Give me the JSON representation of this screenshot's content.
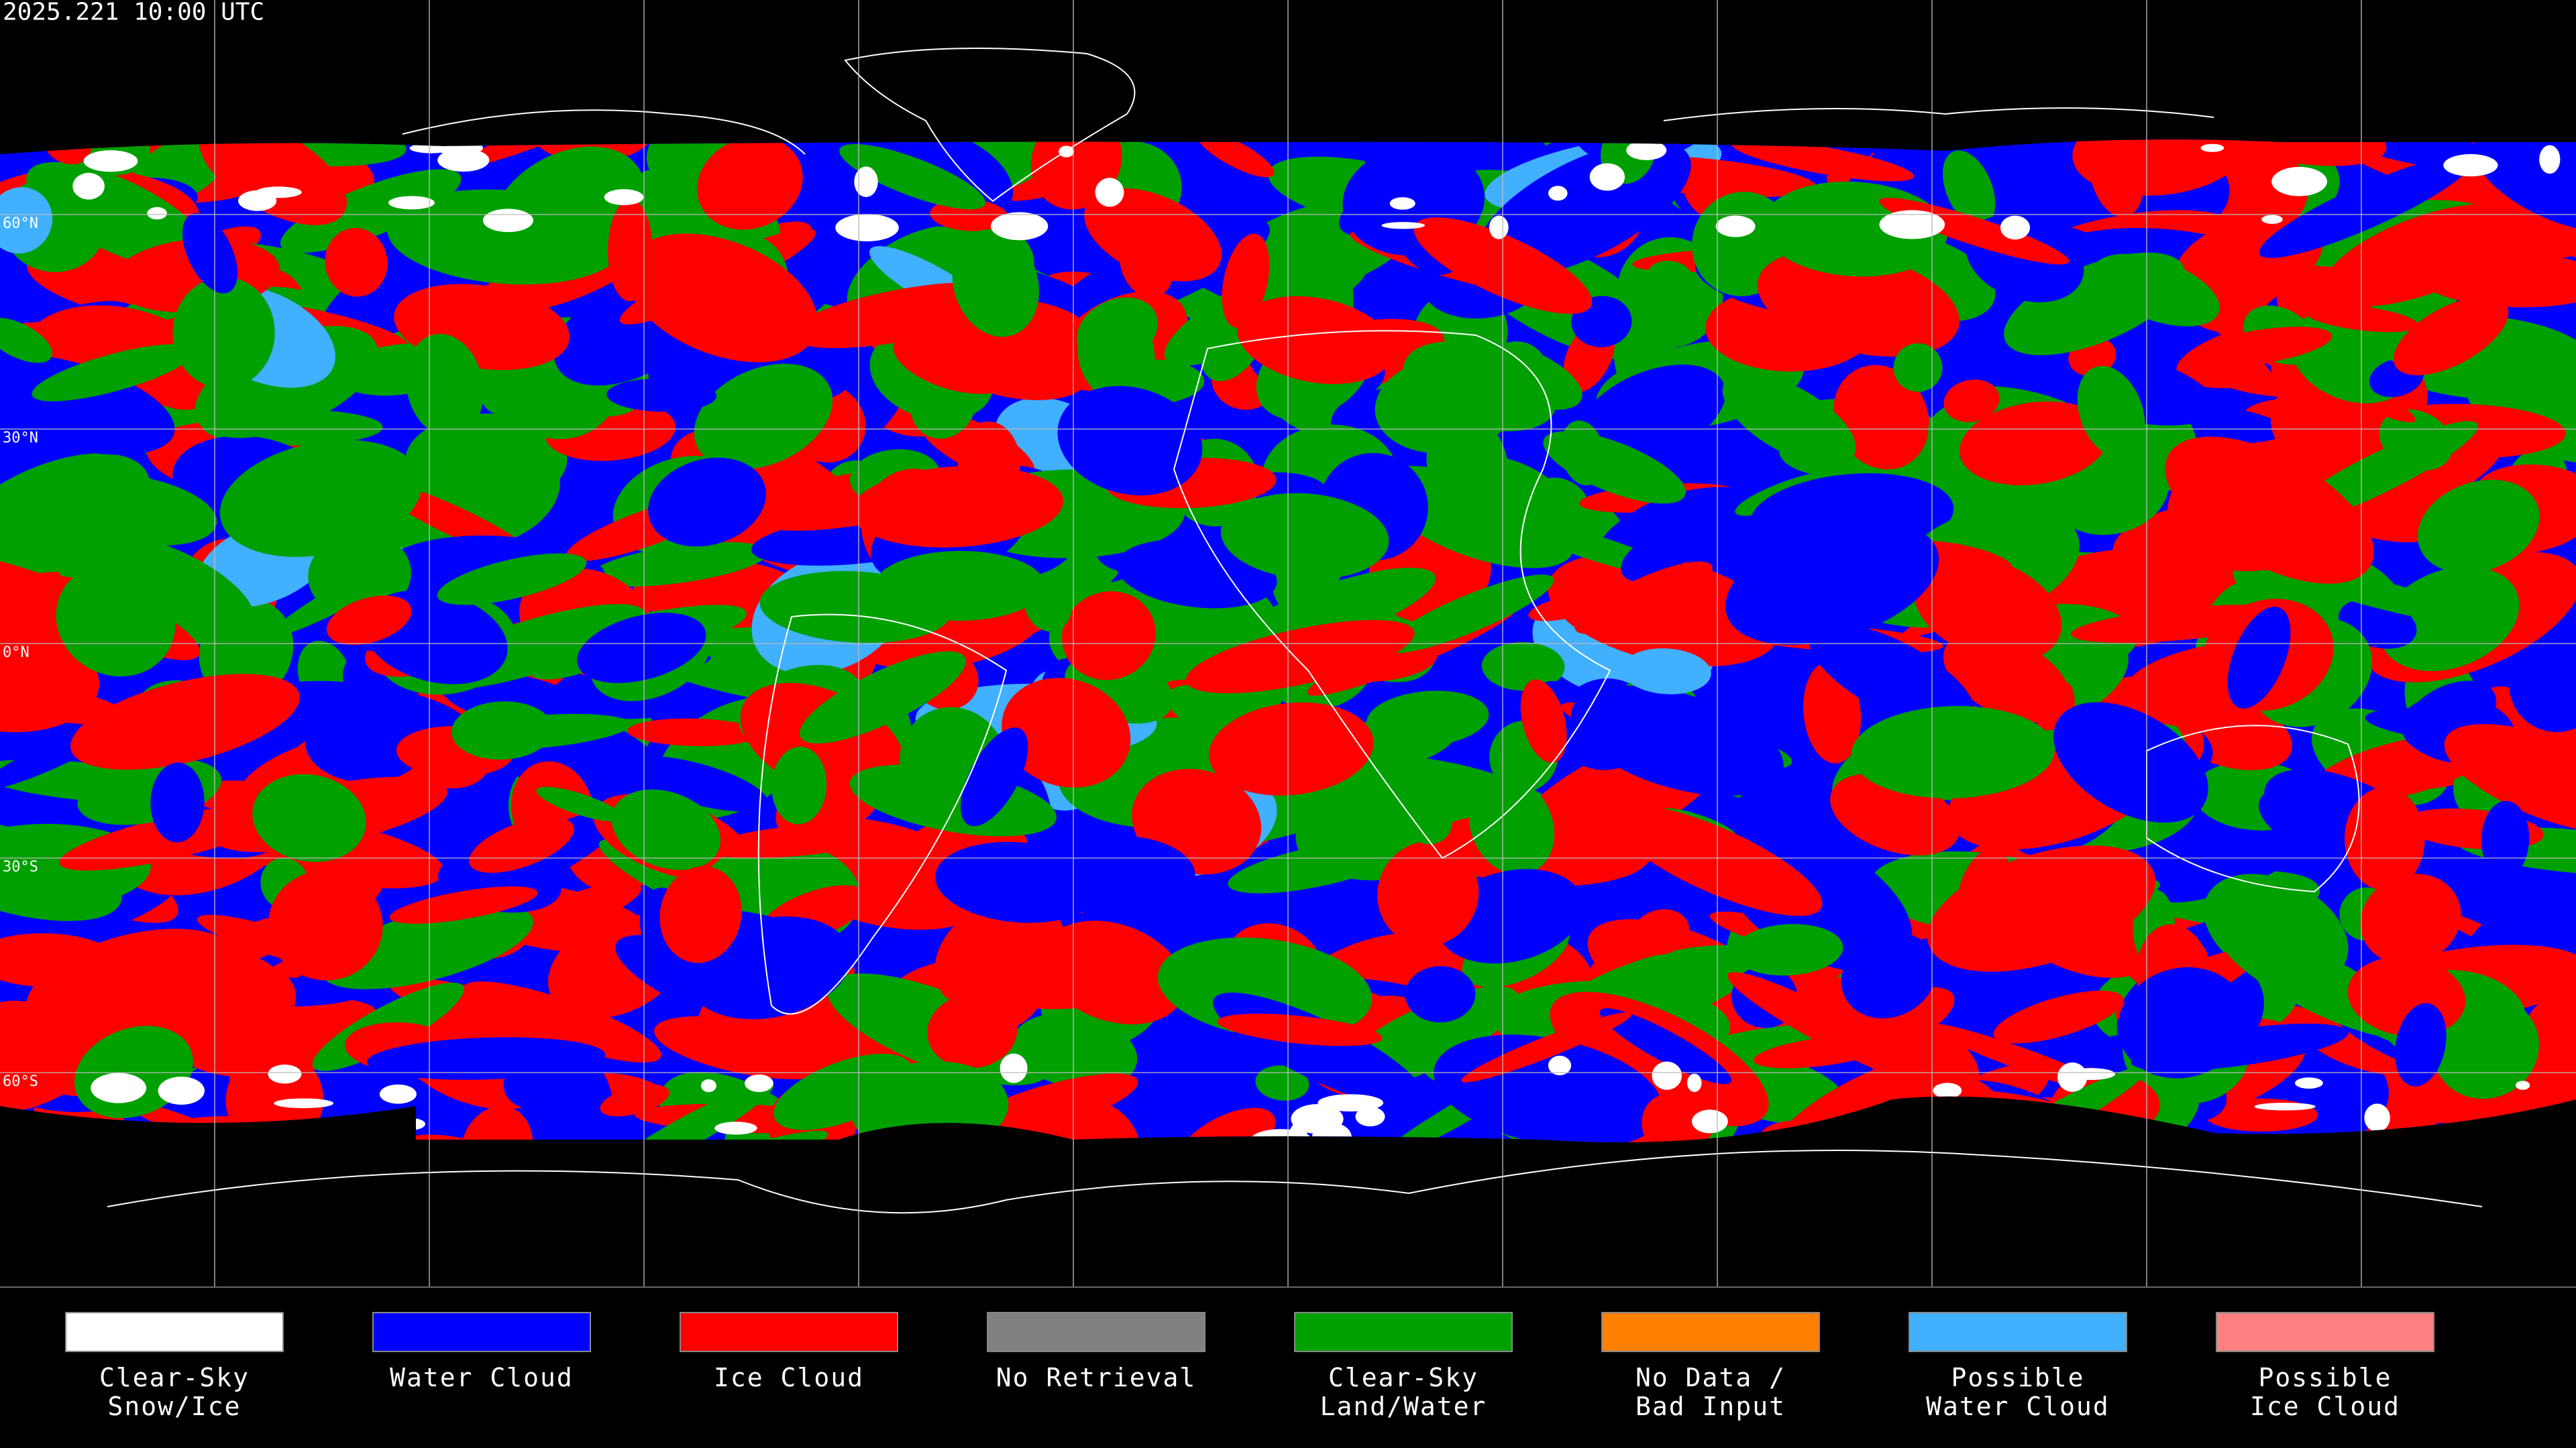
{
  "timestamp": "2025.221 10:00 UTC",
  "latitude_labels": [
    "60°N",
    "30°N",
    "0°N",
    "30°S",
    "60°S"
  ],
  "legend": [
    {
      "label": [
        "Clear-Sky",
        "Snow/Ice"
      ],
      "color": "#ffffff"
    },
    {
      "label": [
        "Water Cloud"
      ],
      "color": "#0000ff"
    },
    {
      "label": [
        "Ice Cloud"
      ],
      "color": "#ff0000"
    },
    {
      "label": [
        "No Retrieval"
      ],
      "color": "#808080"
    },
    {
      "label": [
        "Clear-Sky",
        "Land/Water"
      ],
      "color": "#00a000"
    },
    {
      "label": [
        "No Data /",
        "Bad Input"
      ],
      "color": "#ff8000"
    },
    {
      "label": [
        "Possible",
        "Water Cloud"
      ],
      "color": "#40b0ff"
    },
    {
      "label": [
        "Possible",
        "Ice Cloud"
      ],
      "color": "#ff8080"
    }
  ]
}
